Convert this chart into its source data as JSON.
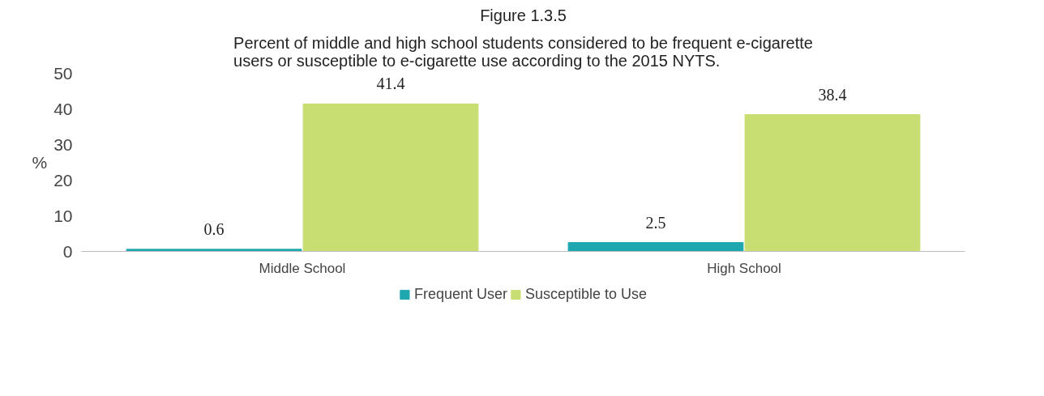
{
  "chart_data": {
    "type": "bar",
    "title": "Figure 1.3.5",
    "subtitle": "Percent of middle and high school students considered to be frequent e-cigarette\nusers or susceptible to e-cigarette use according to the 2015 NYTS.",
    "ylabel": "%",
    "categories": [
      "Middle School",
      "High School"
    ],
    "series": [
      {
        "name": "Frequent User",
        "color": "#1fa7b0",
        "values": [
          0.6,
          2.5
        ]
      },
      {
        "name": "Susceptible to Use",
        "color": "#c8dd72",
        "values": [
          41.4,
          38.4
        ]
      }
    ],
    "ylim": [
      0,
      50
    ],
    "yticks": [
      0,
      10,
      20,
      30,
      40,
      50
    ],
    "grid": false,
    "legend": "bottom",
    "data_labels": true
  }
}
